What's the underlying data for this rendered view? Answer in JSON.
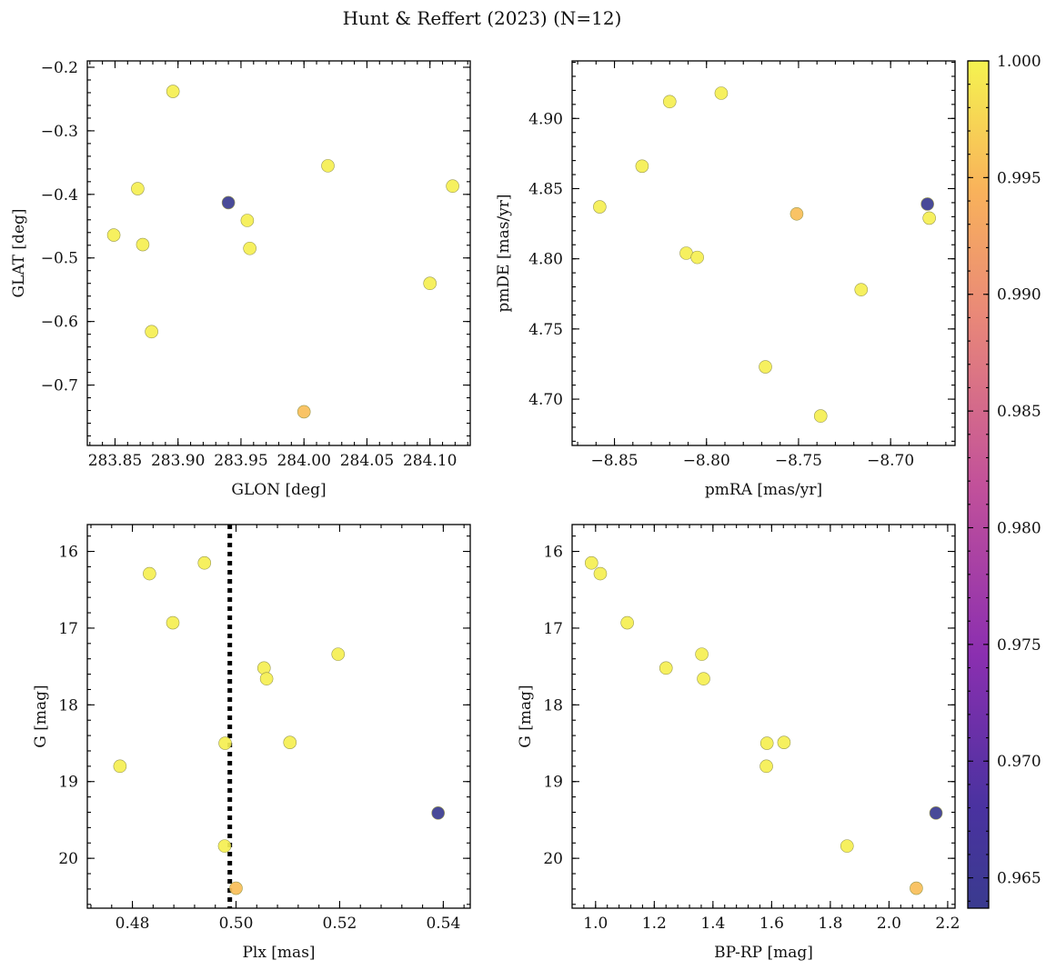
{
  "figure": {
    "title": "Hunt & Reffert (2023) (N=12)"
  },
  "colorbar": {
    "colormap": "plasma",
    "range": [
      0.9637,
      1.0
    ],
    "ticks": [
      0.965,
      0.97,
      0.975,
      0.98,
      0.985,
      0.99,
      0.995,
      1.0
    ],
    "tick_labels": [
      "0.965",
      "0.970",
      "0.975",
      "0.980",
      "0.985",
      "0.990",
      "0.995",
      "1.000"
    ]
  },
  "chart_data": [
    {
      "type": "scatter",
      "panel": "top-left",
      "xlabel": "GLON [deg]",
      "ylabel": "GLAT [deg]",
      "xlim": [
        283.828,
        284.132
      ],
      "ylim": [
        -0.795,
        -0.19
      ],
      "y_inverted": false,
      "xticks": [
        283.85,
        283.9,
        283.95,
        284.0,
        284.05,
        284.1
      ],
      "xtick_labels": [
        "283.85",
        "283.90",
        "283.95",
        "284.00",
        "284.05",
        "284.10"
      ],
      "yticks": [
        -0.2,
        -0.3,
        -0.4,
        -0.5,
        -0.6,
        -0.7
      ],
      "ytick_labels": [
        "−0.2",
        "−0.3",
        "−0.4",
        "−0.5",
        "−0.6",
        "−0.7"
      ],
      "x": [
        283.849,
        283.868,
        283.872,
        283.879,
        283.896,
        283.94,
        283.955,
        283.957,
        284.0,
        284.019,
        284.1,
        284.118
      ],
      "y": [
        -0.464,
        -0.391,
        -0.479,
        -0.616,
        -0.238,
        -0.413,
        -0.441,
        -0.485,
        -0.742,
        -0.355,
        -0.54,
        -0.387
      ],
      "color_values": [
        0.9997,
        0.9997,
        0.9997,
        0.9997,
        0.9997,
        0.9637,
        0.9997,
        0.9997,
        0.9955,
        0.9997,
        0.9997,
        0.9997
      ]
    },
    {
      "type": "scatter",
      "panel": "top-right",
      "xlabel": "pmRA [mas/yr]",
      "ylabel": "pmDE [mas/yr]",
      "xlim": [
        -8.873,
        -8.665
      ],
      "ylim": [
        4.667,
        4.941
      ],
      "y_inverted": false,
      "xticks": [
        -8.85,
        -8.8,
        -8.75,
        -8.7
      ],
      "xtick_labels": [
        "−8.85",
        "−8.80",
        "−8.75",
        "−8.70"
      ],
      "yticks": [
        4.7,
        4.75,
        4.8,
        4.85,
        4.9
      ],
      "ytick_labels": [
        "4.70",
        "4.75",
        "4.80",
        "4.85",
        "4.90"
      ],
      "x": [
        -8.858,
        -8.835,
        -8.82,
        -8.792,
        -8.811,
        -8.805,
        -8.751,
        -8.768,
        -8.738,
        -8.716,
        -8.68,
        -8.679
      ],
      "y": [
        4.837,
        4.866,
        4.912,
        4.918,
        4.804,
        4.801,
        4.832,
        4.723,
        4.688,
        4.778,
        4.839,
        4.829
      ],
      "color_values": [
        0.9997,
        0.9997,
        0.9997,
        0.9997,
        0.9997,
        0.9997,
        0.9955,
        0.9997,
        0.9997,
        0.9997,
        0.9637,
        0.9997
      ]
    },
    {
      "type": "scatter",
      "panel": "bottom-left",
      "xlabel": "Plx [mas]",
      "ylabel": "G [mag]",
      "xlim": [
        0.4713,
        0.5452
      ],
      "ylim": [
        20.65,
        15.65
      ],
      "y_inverted": true,
      "xticks": [
        0.48,
        0.5,
        0.52,
        0.54
      ],
      "xtick_labels": [
        "0.48",
        "0.50",
        "0.52",
        "0.54"
      ],
      "yticks": [
        16,
        17,
        18,
        19,
        20
      ],
      "ytick_labels": [
        "16",
        "17",
        "18",
        "19",
        "20"
      ],
      "reference_line": {
        "x": 0.4988,
        "style": "dotted"
      },
      "x": [
        0.4833,
        0.4939,
        0.4878,
        0.5054,
        0.5059,
        0.5197,
        0.4979,
        0.5104,
        0.4776,
        0.4978,
        0.5,
        0.539
      ],
      "y": [
        16.29,
        16.15,
        16.93,
        17.52,
        17.66,
        17.34,
        18.5,
        18.49,
        18.8,
        19.84,
        20.39,
        19.41
      ],
      "color_values": [
        0.9997,
        0.9997,
        0.9997,
        0.9997,
        0.9997,
        0.9997,
        0.9997,
        0.9997,
        0.9997,
        0.9997,
        0.9955,
        0.9637
      ]
    },
    {
      "type": "scatter",
      "panel": "bottom-right",
      "xlabel": "BP-RP [mag]",
      "ylabel": "G [mag]",
      "xlim": [
        0.92,
        2.225
      ],
      "ylim": [
        20.65,
        15.65
      ],
      "y_inverted": true,
      "xticks": [
        1.0,
        1.2,
        1.4,
        1.6,
        1.8,
        2.0,
        2.2
      ],
      "xtick_labels": [
        "1.0",
        "1.2",
        "1.4",
        "1.6",
        "1.8",
        "2.0",
        "2.2"
      ],
      "yticks": [
        16,
        17,
        18,
        19,
        20
      ],
      "ytick_labels": [
        "16",
        "17",
        "18",
        "19",
        "20"
      ],
      "x": [
        0.986,
        1.016,
        1.108,
        1.24,
        1.362,
        1.368,
        1.584,
        1.642,
        1.582,
        1.857,
        2.093,
        2.16
      ],
      "y": [
        16.15,
        16.29,
        16.93,
        17.52,
        17.34,
        17.66,
        18.5,
        18.49,
        18.8,
        19.84,
        20.39,
        19.41
      ],
      "color_values": [
        0.9997,
        0.9997,
        0.9997,
        0.9997,
        0.9997,
        0.9997,
        0.9997,
        0.9997,
        0.9997,
        0.9997,
        0.9955,
        0.9637
      ]
    }
  ]
}
